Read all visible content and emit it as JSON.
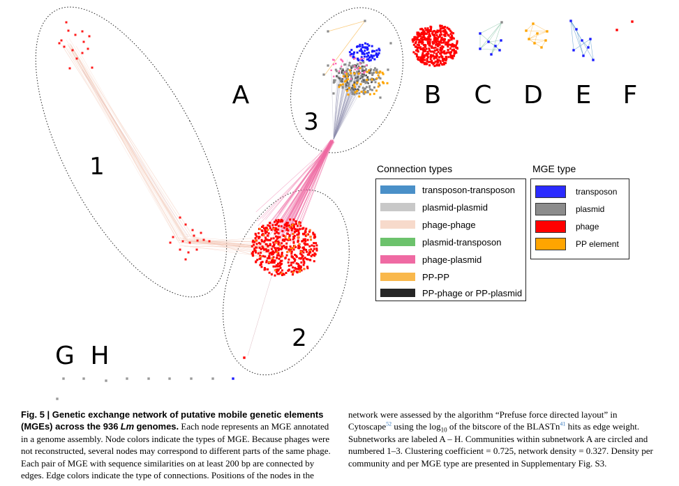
{
  "figure": {
    "subnetworks": [
      "A",
      "B",
      "C",
      "D",
      "E",
      "F",
      "G",
      "H"
    ],
    "communities": [
      "1",
      "2",
      "3"
    ]
  },
  "legend": {
    "connection": {
      "title": "Connection types",
      "items": [
        {
          "label": "transposon-transposon",
          "color": "#4a90c8"
        },
        {
          "label": "plasmid-plasmid",
          "color": "#c8c8c8"
        },
        {
          "label": "phage-phage",
          "color": "#f7dacb"
        },
        {
          "label": "plasmid-transposon",
          "color": "#6cc26c"
        },
        {
          "label": "phage-plasmid",
          "color": "#ef6aa3"
        },
        {
          "label": "PP-PP",
          "color": "#f9b84c"
        },
        {
          "label": "PP-phage or PP-plasmid",
          "color": "#262626"
        }
      ]
    },
    "mge": {
      "title": "MGE type",
      "items": [
        {
          "label": "transposon",
          "color": "#2b2bff"
        },
        {
          "label": "plasmid",
          "color": "#8c8c8c"
        },
        {
          "label": "phage",
          "color": "#ff0000"
        },
        {
          "label": "PP element",
          "color": "#ffa500"
        }
      ]
    }
  },
  "caption": {
    "fig_label": "Fig. 5 | Genetic exchange network of putative mobile genetic elements (MGEs) across the 936",
    "lm": "Lm",
    "genomes": "genomes.",
    "left_rest": "Each node represents an MGE annotated in a genome assembly. Node colors indicate the types of MGE. Because phages were not reconstructed, several nodes may correspond to different parts of the same phage. Each pair of MGE with sequence similarities on at least 200 bp are connected by edges. Edge colors indicate the type of connections. Positions of the nodes in the",
    "right_a": "network were assessed by the algorithm “Prefuse force directed layout” in Cytoscape",
    "ref1": "52",
    "right_b": "using the log",
    "log_base": "10",
    "right_c": "of the bitscore of the BLASTn",
    "ref2": "41",
    "right_d": "hits as edge weight. Subnetworks are labeled A – H. Communities within subnetwork A are circled and numbered 1–3. Clustering coefficient = 0.725, network density = 0.327. Density per community and per MGE type are presented in Supplementary Fig. S3."
  }
}
